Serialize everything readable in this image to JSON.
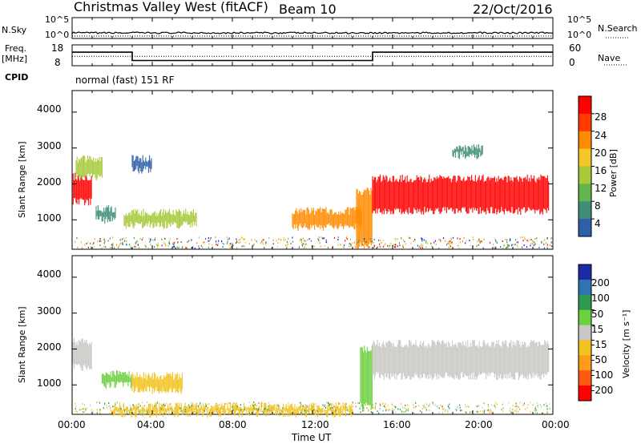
{
  "header": {
    "station": "Christmas Valley West (fitACF)",
    "beam": "Beam 10",
    "date": "22/Oct/2016"
  },
  "nsky_panel": {
    "label": "N.Sky",
    "right_label": "N.Search",
    "y_ticks_left": [
      "10^5",
      "10^0"
    ],
    "y_ticks_right": [
      "10^5",
      "10^0"
    ]
  },
  "freq_panel": {
    "label_line1": "Freq.",
    "label_line2": "[MHz]",
    "right_label": "Nave",
    "y_ticks_left": [
      "18",
      "8"
    ],
    "y_ticks_right": [
      "60",
      "0"
    ]
  },
  "cpid_panel": {
    "label": "CPID",
    "mode_text": "normal (fast) 151 RF"
  },
  "power_panel": {
    "ylabel": "Slant Range [km]",
    "colorbar_label": "Power [dB]",
    "colorbar_ticks": [
      "28",
      "24",
      "20",
      "16",
      "12",
      "8",
      "4"
    ],
    "colorbar_colors": [
      "#ff0000",
      "#ff3b00",
      "#ff8c00",
      "#f3c62a",
      "#a7c93a",
      "#62b64d",
      "#3f8f78",
      "#2e5fa8",
      "#0025ff"
    ]
  },
  "velocity_panel": {
    "ylabel": "Slant Range [km]",
    "colorbar_label": "Velocity [m s⁻¹]",
    "colorbar_ticks": [
      "200",
      "100",
      "50",
      "15",
      "-15",
      "-50",
      "-100",
      "-200"
    ],
    "colorbar_colors": [
      "#1a2aa8",
      "#2f73b5",
      "#2d9a4f",
      "#6bd13f",
      "#c8c8c4",
      "#f2c31f",
      "#ff9b1a",
      "#ff5a10",
      "#ff0000"
    ]
  },
  "time_axis": {
    "label": "Time UT",
    "ticks": [
      "00:00",
      "04:00",
      "08:00",
      "12:00",
      "16:00",
      "20:00",
      "00:00"
    ]
  },
  "chart_data": {
    "type": "heatmap",
    "x_range_hours": [
      0,
      24
    ],
    "y_range_km": [
      180,
      4600
    ],
    "y_ticks_km": [
      1000,
      2000,
      3000,
      4000
    ],
    "power_regions": [
      {
        "t": [
          0.05,
          1.0
        ],
        "r": [
          1500,
          2200
        ],
        "power_db": 28
      },
      {
        "t": [
          0.2,
          1.5
        ],
        "r": [
          2200,
          2700
        ],
        "power_db": 16
      },
      {
        "t": [
          1.2,
          2.2
        ],
        "r": [
          1000,
          1300
        ],
        "power_db": 12
      },
      {
        "t": [
          2.6,
          6.2
        ],
        "r": [
          850,
          1200
        ],
        "power_db": 18
      },
      {
        "t": [
          3.0,
          4.0
        ],
        "r": [
          2400,
          2700
        ],
        "power_db": 10
      },
      {
        "t": [
          11.0,
          14.5
        ],
        "r": [
          800,
          1250
        ],
        "power_db": 24
      },
      {
        "t": [
          14.2,
          15.0
        ],
        "r": [
          300,
          1800
        ],
        "power_db": 26
      },
      {
        "t": [
          15.0,
          23.8
        ],
        "r": [
          1250,
          2150
        ],
        "power_db": 28
      },
      {
        "t": [
          19.0,
          20.5
        ],
        "r": [
          2800,
          3000
        ],
        "power_db": 14
      }
    ],
    "velocity_regions": [
      {
        "t": [
          0.05,
          1.0
        ],
        "r": [
          1500,
          2200
        ],
        "velocity_ms": 0
      },
      {
        "t": [
          1.5,
          3.0
        ],
        "r": [
          1000,
          1300
        ],
        "velocity_ms": 30
      },
      {
        "t": [
          3.0,
          5.5
        ],
        "r": [
          850,
          1250
        ],
        "velocity_ms": -40
      },
      {
        "t": [
          14.4,
          15.0
        ],
        "r": [
          400,
          2000
        ],
        "velocity_ms": 30
      },
      {
        "t": [
          15.0,
          23.8
        ],
        "r": [
          1250,
          2150
        ],
        "velocity_ms": 0
      },
      {
        "t": [
          2.0,
          14.0
        ],
        "r": [
          200,
          400
        ],
        "velocity_ms": -40
      }
    ],
    "frequency_mhz": [
      {
        "t": 0.0,
        "value": 14.5
      },
      {
        "t": 3.0,
        "value": 14.5
      },
      {
        "t": 3.0,
        "value": 10.5
      },
      {
        "t": 15.0,
        "value": 10.5
      },
      {
        "t": 15.0,
        "value": 14.5
      },
      {
        "t": 24.0,
        "value": 14.5
      }
    ],
    "nave": 27
  }
}
